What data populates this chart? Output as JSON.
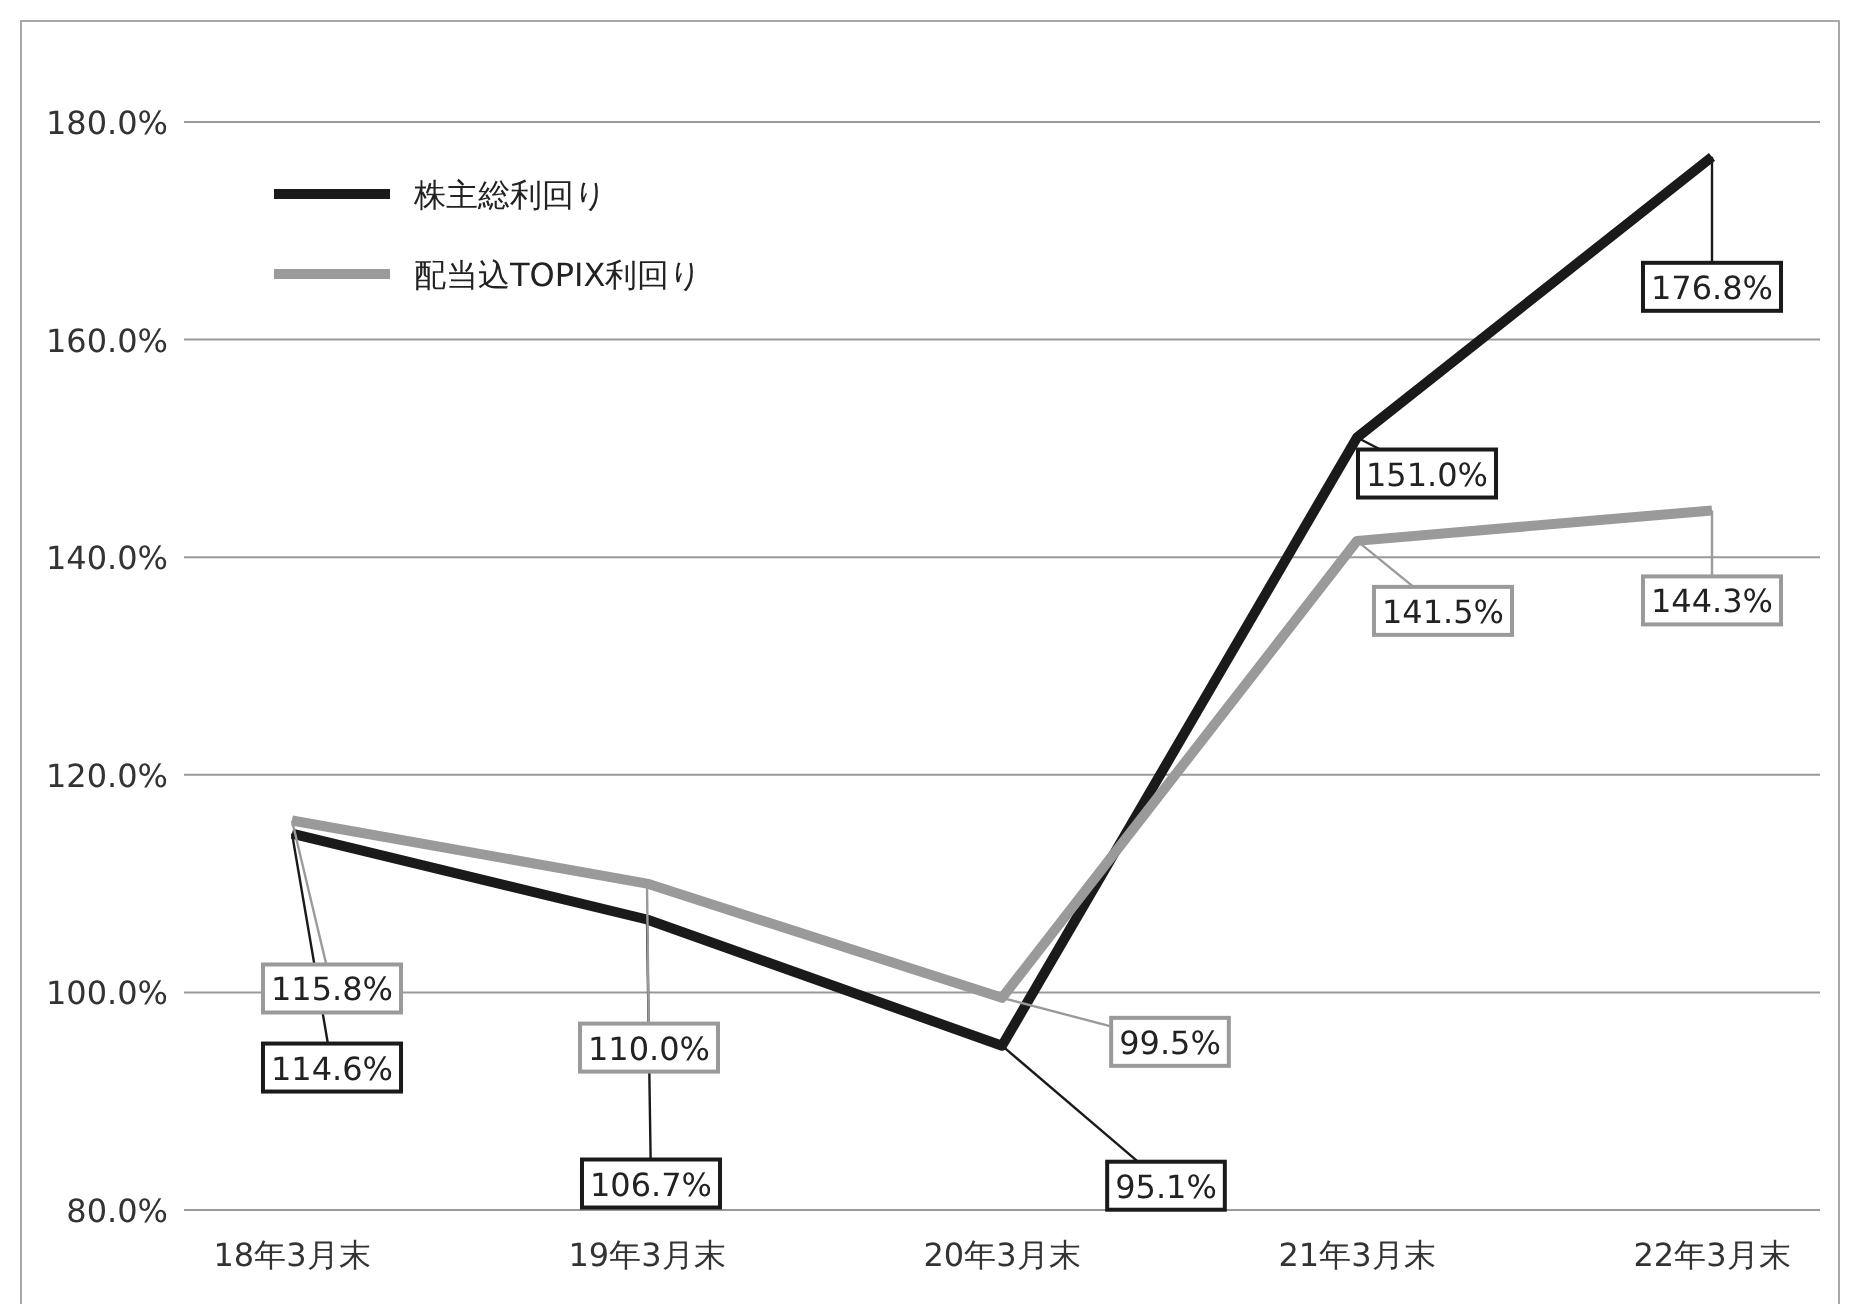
{
  "chart_data": {
    "type": "line",
    "categories": [
      "18年3月末",
      "19年3月末",
      "20年3月末",
      "21年3月末",
      "22年3月末"
    ],
    "series": [
      {
        "name": "株主総利回り",
        "color": "#1a1a1a",
        "values": [
          114.6,
          106.7,
          95.1,
          151.0,
          176.8
        ],
        "value_labels": [
          "114.6%",
          "106.7%",
          "95.1%",
          "151.0%",
          "176.8%"
        ]
      },
      {
        "name": "配当込TOPIX利回り",
        "color": "#9a9a9a",
        "values": [
          115.8,
          110.0,
          99.5,
          141.5,
          144.3
        ],
        "value_labels": [
          "115.8%",
          "110.0%",
          "99.5%",
          "141.5%",
          "144.3%"
        ]
      }
    ],
    "ylim": [
      80,
      180
    ],
    "yticks": [
      {
        "value": 80,
        "label": "80.0%"
      },
      {
        "value": 100,
        "label": "100.0%"
      },
      {
        "value": 120,
        "label": "120.0%"
      },
      {
        "value": 140,
        "label": "140.0%"
      },
      {
        "value": 160,
        "label": "160.0%"
      },
      {
        "value": 180,
        "label": "180.0%"
      }
    ],
    "grid": "y",
    "legend": "top left",
    "marker": "none",
    "line_style": "solid"
  }
}
